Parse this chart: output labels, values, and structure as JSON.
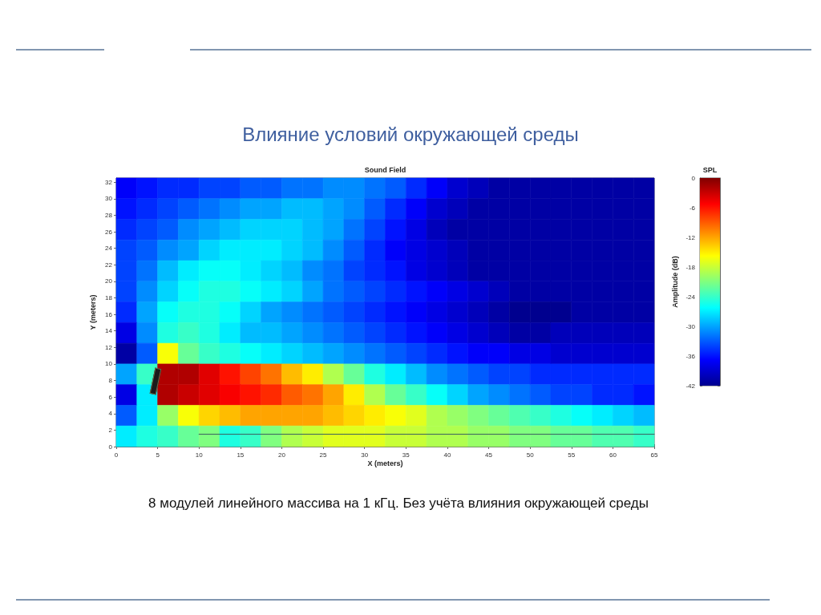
{
  "chart_data": {
    "type": "heatmap",
    "title": "Влияние условий окружающей среды",
    "subtitle": "Sound Field",
    "xlabel": "X (meters)",
    "ylabel": "Y (meters)",
    "clabel": "Amplitude (dB)",
    "legend_title": "SPL",
    "annotations": [
      "8 модулей линейного массива на 1 кГц. Без учёта влияния окружающей среды"
    ],
    "x": [
      1.25,
      3.75,
      6.25,
      8.75,
      11.25,
      13.75,
      16.25,
      18.75,
      21.25,
      23.75,
      26.25,
      28.75,
      31.25,
      33.75,
      36.25,
      38.75,
      41.25,
      43.75,
      46.25,
      48.75,
      51.25,
      53.75,
      56.25,
      58.75,
      61.25,
      63.75
    ],
    "y": [
      31.25,
      28.75,
      26.25,
      23.75,
      21.25,
      18.75,
      16.25,
      13.75,
      11.25,
      8.75,
      6.25,
      3.75,
      1.25
    ],
    "cells": [
      [
        -37,
        -36,
        -35,
        -35,
        -34,
        -34,
        -33,
        -33,
        -32,
        -32,
        -31,
        -31,
        -32,
        -33,
        -35,
        -37,
        -39,
        -40,
        -41,
        -41,
        -41,
        -41,
        -41,
        -41,
        -41,
        -41
      ],
      [
        -36,
        -35,
        -34,
        -33,
        -32,
        -31,
        -30,
        -30,
        -29,
        -29,
        -30,
        -31,
        -33,
        -35,
        -37,
        -39,
        -40,
        -41,
        -41,
        -41,
        -41,
        -41,
        -41,
        -41,
        -41,
        -41
      ],
      [
        -35,
        -34,
        -33,
        -31,
        -30,
        -29,
        -28,
        -28,
        -28,
        -29,
        -30,
        -32,
        -34,
        -36,
        -38,
        -40,
        -41,
        -41,
        -41,
        -41,
        -41,
        -41,
        -41,
        -41,
        -41,
        -41
      ],
      [
        -34,
        -33,
        -31,
        -30,
        -28,
        -27,
        -27,
        -27,
        -28,
        -29,
        -31,
        -33,
        -35,
        -37,
        -38,
        -39,
        -40,
        -41,
        -41,
        -41,
        -41,
        -41,
        -41,
        -41,
        -41,
        -41
      ],
      [
        -34,
        -32,
        -29,
        -27,
        -26,
        -26,
        -27,
        -28,
        -29,
        -31,
        -32,
        -34,
        -35,
        -36,
        -38,
        -39,
        -40,
        -41,
        -41,
        -41,
        -41,
        -41,
        -41,
        -41,
        -41,
        -41
      ],
      [
        -34,
        -31,
        -28,
        -26,
        -25,
        -25,
        -26,
        -27,
        -28,
        -30,
        -32,
        -33,
        -34,
        -35,
        -36,
        -37,
        -38,
        -39,
        -40,
        -41,
        -41,
        -41,
        -41,
        -41,
        -41,
        -41
      ],
      [
        -35,
        -30,
        -26,
        -25,
        -25,
        -26,
        -28,
        -30,
        -31,
        -32,
        -33,
        -34,
        -35,
        -36,
        -37,
        -38,
        -39,
        -40,
        -41,
        -42,
        -42,
        -42,
        -41,
        -41,
        -41,
        -41
      ],
      [
        -38,
        -31,
        -25,
        -24,
        -25,
        -27,
        -29,
        -29,
        -30,
        -31,
        -32,
        -33,
        -34,
        -35,
        -36,
        -37,
        -38,
        -39,
        -40,
        -41,
        -41,
        -40,
        -40,
        -40,
        -40,
        -40
      ],
      [
        -41,
        -33,
        -16,
        -22,
        -24,
        -25,
        -26,
        -27,
        -28,
        -29,
        -30,
        -31,
        -32,
        -33,
        -34,
        -35,
        -36,
        -37,
        -37,
        -38,
        -38,
        -39,
        -39,
        -39,
        -39,
        -39
      ],
      [
        -30,
        -24,
        -2,
        -2,
        -4,
        -6,
        -8,
        -10,
        -13,
        -15,
        -19,
        -22,
        -25,
        -27,
        -29,
        -31,
        -32,
        -33,
        -34,
        -34,
        -35,
        -35,
        -35,
        -35,
        -35,
        -35
      ],
      [
        -38,
        -27,
        -2,
        -3,
        -4,
        -5,
        -6,
        -7,
        -9,
        -10,
        -12,
        -15,
        -19,
        -22,
        -24,
        -26,
        -28,
        -30,
        -31,
        -32,
        -33,
        -34,
        -34,
        -35,
        -35,
        -36
      ],
      [
        -33,
        -27,
        -20,
        -16,
        -14,
        -13,
        -12,
        -12,
        -12,
        -12,
        -13,
        -14,
        -15,
        -16,
        -17,
        -19,
        -20,
        -21,
        -22,
        -23,
        -24,
        -25,
        -26,
        -27,
        -28,
        -29
      ],
      [
        -27,
        -25,
        -24,
        -22,
        -21,
        -25,
        -24,
        -21,
        -19,
        -18,
        -17,
        -17,
        -17,
        -18,
        -18,
        -19,
        -19,
        -20,
        -20,
        -21,
        -21,
        -22,
        -22,
        -23,
        -23,
        -24
      ]
    ],
    "xlim": [
      0,
      65
    ],
    "xticks": [
      0,
      5,
      10,
      15,
      20,
      25,
      30,
      35,
      40,
      45,
      50,
      55,
      60,
      65
    ],
    "ylim": [
      0,
      32.5
    ],
    "yticks": [
      0,
      2,
      4,
      6,
      8,
      10,
      12,
      14,
      16,
      18,
      20,
      22,
      24,
      26,
      28,
      30,
      32
    ],
    "clim": [
      -42,
      0
    ],
    "cticks": [
      -42,
      -36,
      -30,
      -24,
      -18,
      -12,
      -6,
      0
    ],
    "series": [
      {
        "type": "line",
        "x": [
          10,
          65
        ],
        "values": [
          1.5,
          1.5
        ],
        "color": "#3b5f5f"
      }
    ]
  }
}
